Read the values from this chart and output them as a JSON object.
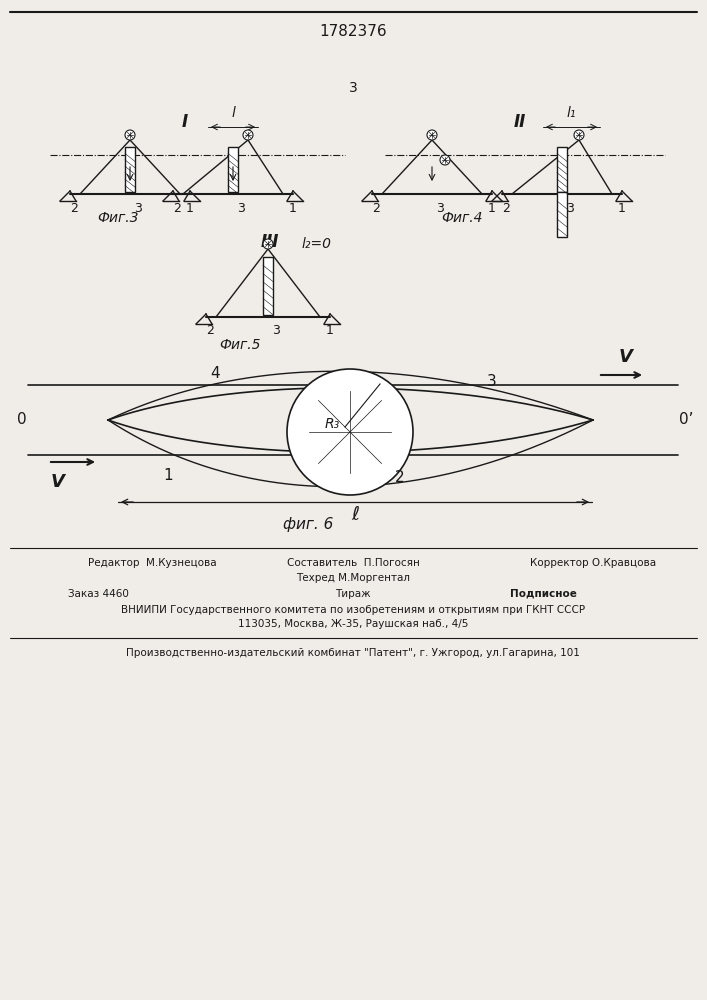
{
  "title_number": "1782376",
  "page_number": "3",
  "bg_color": "#f0ede8",
  "line_color": "#1a1a1a",
  "bottom_text1": "Редактор  М.Кузнецова",
  "bottom_text2": "Составитель  П.Погосян",
  "bottom_text3": "Техред М.Моргентал",
  "bottom_text4": "Корректор О.Кравцова",
  "bottom_text5": "Заказ 4460",
  "bottom_text6": "Тираж",
  "bottom_text7": "Подписное",
  "bottom_text8": "ВНИИПИ Государственного комитета по изобретениям и открытиям при ГКНТ СССР",
  "bottom_text9": "113035, Москва, Ж-35, Раушская наб., 4/5",
  "bottom_text10": "Производственно-издательский комбинат \"Патент\", г. Ужгород, ул.Гагарина, 101",
  "fig3_label": "Фиг.3",
  "fig4_label": "Фиг.4",
  "fig5_label": "Фиг.5",
  "fig6_label": "фиг. 6",
  "roman1": "I",
  "roman2": "II",
  "roman3": "III",
  "label_l": "l",
  "label_l1": "l₁",
  "label_l2_eq": "l₂=0",
  "label_e": "ℓ",
  "label_v": "V",
  "label_r3": "R₃",
  "label_o": "0",
  "label_o_prime": "0’"
}
